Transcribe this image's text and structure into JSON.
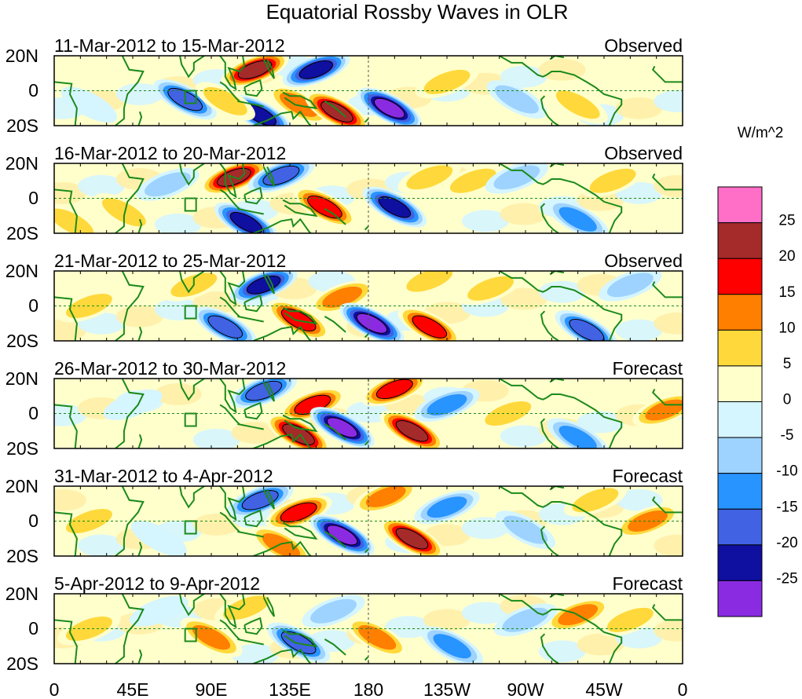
{
  "chart_data": {
    "type": "heatmap",
    "title": "Equatorial Rossby Waves in OLR",
    "colorbar_units": "W/m^2",
    "x_tick_labels": [
      "0",
      "45E",
      "90E",
      "135E",
      "180",
      "135W",
      "90W",
      "45W",
      "0"
    ],
    "x_range_deg_east": [
      0,
      360
    ],
    "y_tick_labels": [
      "20N",
      "0",
      "20S"
    ],
    "y_range_deg": [
      -20,
      20
    ],
    "colorbar": {
      "levels": [
        25,
        20,
        15,
        10,
        5,
        0,
        -5,
        -10,
        -15,
        -20,
        -25
      ],
      "colors": [
        "#ff6ec7",
        "#a52a2a",
        "#ff0000",
        "#ff7f00",
        "#ffd93b",
        "#ffffcc",
        "#d5f5ff",
        "#9ed3ff",
        "#2894ff",
        "#4062e3",
        "#0f0fa0",
        "#8a2be2"
      ]
    },
    "panels": [
      {
        "period": "11-Mar-2012 to 15-Mar-2012",
        "type": "Observed",
        "features": [
          {
            "lon": 75,
            "lat": -5,
            "value": -20
          },
          {
            "lon": 115,
            "lat": 12,
            "value": 25
          },
          {
            "lon": 150,
            "lat": 12,
            "value": -25
          },
          {
            "lon": 140,
            "lat": -8,
            "value": 15
          },
          {
            "lon": 162,
            "lat": -12,
            "value": 25
          },
          {
            "lon": 192,
            "lat": -10,
            "value": -30
          },
          {
            "lon": 118,
            "lat": -14,
            "value": -25
          },
          {
            "lon": 98,
            "lat": -6,
            "value": 10
          },
          {
            "lon": 225,
            "lat": 5,
            "value": 10
          },
          {
            "lon": 265,
            "lat": -5,
            "value": -10
          },
          {
            "lon": 300,
            "lat": -8,
            "value": 10
          },
          {
            "lon": 330,
            "lat": 8,
            "value": 5
          },
          {
            "lon": 20,
            "lat": -8,
            "value": -5
          }
        ]
      },
      {
        "period": "16-Mar-2012 to 20-Mar-2012",
        "type": "Observed",
        "features": [
          {
            "lon": 103,
            "lat": 12,
            "value": 25
          },
          {
            "lon": 130,
            "lat": 13,
            "value": -20
          },
          {
            "lon": 110,
            "lat": -14,
            "value": -25
          },
          {
            "lon": 155,
            "lat": -5,
            "value": 20
          },
          {
            "lon": 195,
            "lat": -5,
            "value": -25
          },
          {
            "lon": 215,
            "lat": 12,
            "value": 10
          },
          {
            "lon": 240,
            "lat": 10,
            "value": 10
          },
          {
            "lon": 65,
            "lat": 8,
            "value": -10
          },
          {
            "lon": 40,
            "lat": -8,
            "value": 10
          },
          {
            "lon": 300,
            "lat": -12,
            "value": -15
          },
          {
            "lon": 320,
            "lat": 10,
            "value": 10
          },
          {
            "lon": 10,
            "lat": -14,
            "value": 10
          },
          {
            "lon": 265,
            "lat": 12,
            "value": -10
          }
        ]
      },
      {
        "period": "21-Mar-2012 to 25-Mar-2012",
        "type": "Observed",
        "features": [
          {
            "lon": 120,
            "lat": 12,
            "value": -25
          },
          {
            "lon": 165,
            "lat": 5,
            "value": 15
          },
          {
            "lon": 140,
            "lat": -8,
            "value": 20
          },
          {
            "lon": 182,
            "lat": -10,
            "value": -30
          },
          {
            "lon": 215,
            "lat": -12,
            "value": 20
          },
          {
            "lon": 98,
            "lat": -12,
            "value": -20
          },
          {
            "lon": 215,
            "lat": 15,
            "value": 10
          },
          {
            "lon": 80,
            "lat": 12,
            "value": 10
          },
          {
            "lon": 305,
            "lat": -14,
            "value": -20
          },
          {
            "lon": 250,
            "lat": 10,
            "value": 10
          },
          {
            "lon": 330,
            "lat": 12,
            "value": -10
          },
          {
            "lon": 20,
            "lat": 0,
            "value": 10
          }
        ]
      },
      {
        "period": "26-Mar-2012 to 30-Mar-2012",
        "type": "Forecast",
        "features": [
          {
            "lon": 120,
            "lat": 13,
            "value": -20
          },
          {
            "lon": 148,
            "lat": 5,
            "value": 20
          },
          {
            "lon": 165,
            "lat": -8,
            "value": -30
          },
          {
            "lon": 205,
            "lat": -10,
            "value": 25
          },
          {
            "lon": 140,
            "lat": -12,
            "value": 25
          },
          {
            "lon": 195,
            "lat": 14,
            "value": 20
          },
          {
            "lon": 225,
            "lat": 5,
            "value": -15
          },
          {
            "lon": 260,
            "lat": 0,
            "value": 10
          },
          {
            "lon": 350,
            "lat": 2,
            "value": 15
          },
          {
            "lon": 300,
            "lat": -14,
            "value": -15
          },
          {
            "lon": 45,
            "lat": 5,
            "value": -5
          },
          {
            "lon": 330,
            "lat": 12,
            "value": 5
          }
        ]
      },
      {
        "period": "31-Mar-2012 to 4-Apr-2012",
        "type": "Forecast",
        "features": [
          {
            "lon": 118,
            "lat": 12,
            "value": -20
          },
          {
            "lon": 140,
            "lat": 5,
            "value": 20
          },
          {
            "lon": 165,
            "lat": -8,
            "value": -30
          },
          {
            "lon": 205,
            "lat": -10,
            "value": 25
          },
          {
            "lon": 190,
            "lat": 14,
            "value": 15
          },
          {
            "lon": 225,
            "lat": 8,
            "value": -15
          },
          {
            "lon": 130,
            "lat": -14,
            "value": 15
          },
          {
            "lon": 340,
            "lat": 0,
            "value": 15
          },
          {
            "lon": 310,
            "lat": 12,
            "value": 10
          },
          {
            "lon": 270,
            "lat": -5,
            "value": -10
          },
          {
            "lon": 20,
            "lat": 0,
            "value": 10
          },
          {
            "lon": 60,
            "lat": -10,
            "value": -5
          }
        ]
      },
      {
        "period": "5-Apr-2012 to 9-Apr-2012",
        "type": "Forecast",
        "features": [
          {
            "lon": 140,
            "lat": -8,
            "value": -20
          },
          {
            "lon": 90,
            "lat": -5,
            "value": 15
          },
          {
            "lon": 185,
            "lat": -5,
            "value": 15
          },
          {
            "lon": 228,
            "lat": -10,
            "value": -15
          },
          {
            "lon": 300,
            "lat": 8,
            "value": 15
          },
          {
            "lon": 330,
            "lat": 5,
            "value": 10
          },
          {
            "lon": 110,
            "lat": 12,
            "value": 10
          },
          {
            "lon": 160,
            "lat": 10,
            "value": -10
          },
          {
            "lon": 270,
            "lat": 5,
            "value": -10
          },
          {
            "lon": 20,
            "lat": 0,
            "value": 10
          },
          {
            "lon": 60,
            "lat": 10,
            "value": -5
          }
        ]
      }
    ]
  }
}
